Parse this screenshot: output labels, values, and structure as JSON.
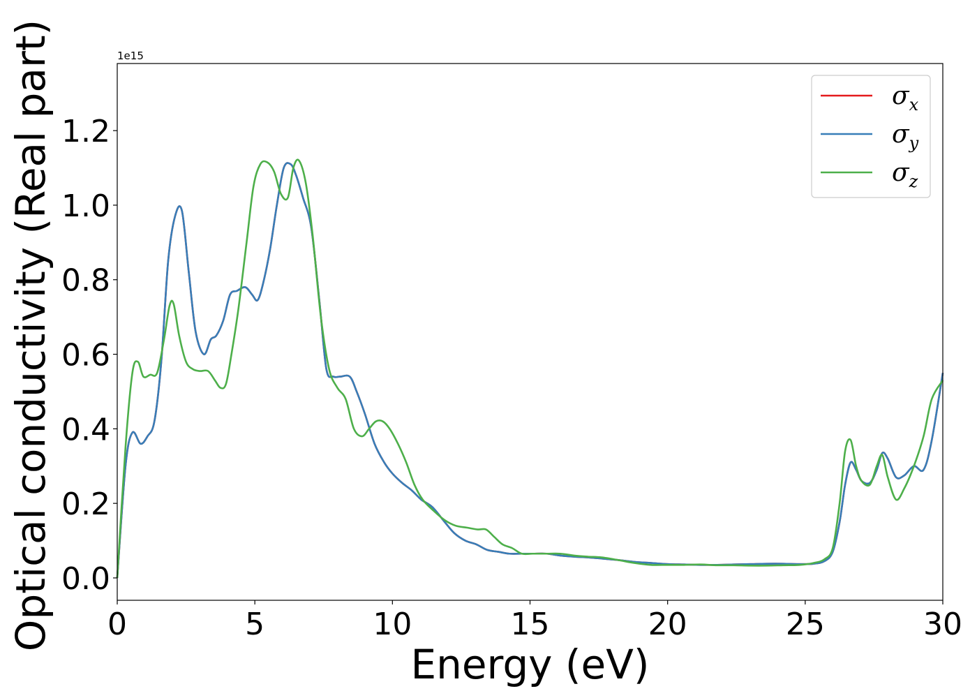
{
  "chart_data": {
    "type": "line",
    "title": "",
    "xlabel": "Energy (eV)",
    "ylabel": "Optical conductivity (Real part)",
    "y_offset_text": "1e15",
    "xlim": [
      0,
      30
    ],
    "ylim": [
      -0.06,
      1.38
    ],
    "xticks": [
      0,
      5,
      10,
      15,
      20,
      25,
      30
    ],
    "xtick_labels": [
      "0",
      "5",
      "10",
      "15",
      "20",
      "25",
      "30"
    ],
    "yticks": [
      0.0,
      0.2,
      0.4,
      0.6,
      0.8,
      1.0,
      1.2
    ],
    "ytick_labels": [
      "0.0",
      "0.2",
      "0.4",
      "0.6",
      "0.8",
      "1.0",
      "1.2"
    ],
    "grid": false,
    "legend_position": "top-right",
    "series": [
      {
        "name": "σx",
        "symbol": "σ",
        "subscript": "x",
        "color": "#e41a1c",
        "x": [
          0,
          0.3,
          0.55,
          0.85,
          1.1,
          1.35,
          1.6,
          1.85,
          2.1,
          2.35,
          2.6,
          2.85,
          3.15,
          3.4,
          3.6,
          3.85,
          4.1,
          4.35,
          4.65,
          4.9,
          5.1,
          5.3,
          5.55,
          5.8,
          6.05,
          6.3,
          6.5,
          6.75,
          7.05,
          7.35,
          7.6,
          7.85,
          8.1,
          8.45,
          8.7,
          9.0,
          9.35,
          9.7,
          10.0,
          10.35,
          10.7,
          11.05,
          11.45,
          11.9,
          12.25,
          12.65,
          13.05,
          13.45,
          13.85,
          14.25,
          14.7,
          15.1,
          15.6,
          16.1,
          16.6,
          17.1,
          17.6,
          18.2,
          18.8,
          19.4,
          20.0,
          20.6,
          21.2,
          21.8,
          22.4,
          23.0,
          23.6,
          24.2,
          24.8,
          25.3,
          25.7,
          26.0,
          26.25,
          26.45,
          26.65,
          26.85,
          27.05,
          27.35,
          27.6,
          27.8,
          28.0,
          28.3,
          28.6,
          28.95,
          29.3,
          29.6,
          30.0
        ],
        "y": [
          0,
          0.3,
          0.39,
          0.36,
          0.38,
          0.42,
          0.58,
          0.85,
          0.97,
          0.985,
          0.82,
          0.66,
          0.6,
          0.64,
          0.65,
          0.69,
          0.76,
          0.77,
          0.78,
          0.76,
          0.745,
          0.79,
          0.88,
          1.0,
          1.1,
          1.11,
          1.08,
          1.02,
          0.94,
          0.74,
          0.56,
          0.54,
          0.54,
          0.54,
          0.5,
          0.44,
          0.36,
          0.31,
          0.28,
          0.255,
          0.235,
          0.21,
          0.19,
          0.15,
          0.12,
          0.1,
          0.09,
          0.075,
          0.07,
          0.065,
          0.065,
          0.065,
          0.065,
          0.06,
          0.057,
          0.055,
          0.052,
          0.048,
          0.043,
          0.04,
          0.037,
          0.036,
          0.035,
          0.035,
          0.036,
          0.037,
          0.038,
          0.038,
          0.037,
          0.038,
          0.045,
          0.07,
          0.15,
          0.25,
          0.31,
          0.29,
          0.26,
          0.255,
          0.29,
          0.335,
          0.32,
          0.27,
          0.275,
          0.3,
          0.29,
          0.37,
          0.55
        ]
      },
      {
        "name": "σy",
        "symbol": "σ",
        "subscript": "y",
        "color": "#377eb8",
        "x": [
          0,
          0.3,
          0.55,
          0.85,
          1.1,
          1.35,
          1.6,
          1.85,
          2.1,
          2.35,
          2.6,
          2.85,
          3.15,
          3.4,
          3.6,
          3.85,
          4.1,
          4.35,
          4.65,
          4.9,
          5.1,
          5.3,
          5.55,
          5.8,
          6.05,
          6.3,
          6.5,
          6.75,
          7.05,
          7.35,
          7.6,
          7.85,
          8.1,
          8.45,
          8.7,
          9.0,
          9.35,
          9.7,
          10.0,
          10.35,
          10.7,
          11.05,
          11.45,
          11.9,
          12.25,
          12.65,
          13.05,
          13.45,
          13.85,
          14.25,
          14.7,
          15.1,
          15.6,
          16.1,
          16.6,
          17.1,
          17.6,
          18.2,
          18.8,
          19.4,
          20.0,
          20.6,
          21.2,
          21.8,
          22.4,
          23.0,
          23.6,
          24.2,
          24.8,
          25.3,
          25.7,
          26.0,
          26.25,
          26.45,
          26.65,
          26.85,
          27.05,
          27.35,
          27.6,
          27.8,
          28.0,
          28.3,
          28.6,
          28.95,
          29.3,
          29.6,
          30.0
        ],
        "y": [
          0,
          0.3,
          0.39,
          0.36,
          0.38,
          0.42,
          0.58,
          0.85,
          0.97,
          0.985,
          0.82,
          0.66,
          0.6,
          0.64,
          0.65,
          0.69,
          0.76,
          0.77,
          0.78,
          0.76,
          0.745,
          0.79,
          0.88,
          1.0,
          1.1,
          1.11,
          1.08,
          1.02,
          0.94,
          0.74,
          0.56,
          0.54,
          0.54,
          0.54,
          0.5,
          0.44,
          0.36,
          0.31,
          0.28,
          0.255,
          0.235,
          0.21,
          0.19,
          0.15,
          0.12,
          0.1,
          0.09,
          0.075,
          0.07,
          0.065,
          0.065,
          0.065,
          0.065,
          0.06,
          0.057,
          0.055,
          0.052,
          0.048,
          0.043,
          0.04,
          0.037,
          0.036,
          0.035,
          0.035,
          0.036,
          0.037,
          0.038,
          0.038,
          0.037,
          0.038,
          0.045,
          0.07,
          0.15,
          0.25,
          0.31,
          0.29,
          0.26,
          0.255,
          0.29,
          0.335,
          0.32,
          0.27,
          0.275,
          0.3,
          0.29,
          0.37,
          0.55
        ]
      },
      {
        "name": "σz",
        "symbol": "σ",
        "subscript": "z",
        "color": "#4daf4a",
        "x": [
          0,
          0.3,
          0.55,
          0.75,
          0.95,
          1.2,
          1.45,
          1.7,
          1.9,
          2.05,
          2.25,
          2.5,
          2.75,
          3.0,
          3.3,
          3.55,
          3.75,
          3.95,
          4.15,
          4.4,
          4.7,
          4.95,
          5.2,
          5.45,
          5.7,
          5.95,
          6.2,
          6.4,
          6.6,
          6.85,
          7.1,
          7.4,
          7.7,
          8.0,
          8.3,
          8.6,
          8.9,
          9.15,
          9.4,
          9.65,
          9.9,
          10.2,
          10.5,
          10.8,
          11.1,
          11.5,
          11.9,
          12.3,
          12.7,
          13.1,
          13.4,
          13.7,
          14.0,
          14.35,
          14.7,
          15.1,
          15.6,
          16.1,
          16.6,
          17.1,
          17.6,
          18.2,
          18.8,
          19.4,
          20.0,
          20.6,
          21.2,
          21.8,
          22.4,
          23.0,
          23.6,
          24.2,
          24.8,
          25.3,
          25.7,
          26.0,
          26.25,
          26.45,
          26.65,
          26.85,
          27.05,
          27.35,
          27.6,
          27.8,
          28.0,
          28.3,
          28.6,
          28.95,
          29.3,
          29.6,
          30.0
        ],
        "y": [
          0,
          0.35,
          0.55,
          0.58,
          0.54,
          0.545,
          0.55,
          0.64,
          0.73,
          0.735,
          0.65,
          0.58,
          0.56,
          0.555,
          0.555,
          0.53,
          0.51,
          0.52,
          0.6,
          0.72,
          0.9,
          1.05,
          1.11,
          1.115,
          1.09,
          1.03,
          1.02,
          1.1,
          1.12,
          1.06,
          0.92,
          0.7,
          0.56,
          0.51,
          0.48,
          0.4,
          0.38,
          0.4,
          0.42,
          0.42,
          0.4,
          0.36,
          0.31,
          0.25,
          0.21,
          0.18,
          0.155,
          0.14,
          0.135,
          0.13,
          0.13,
          0.11,
          0.09,
          0.08,
          0.065,
          0.065,
          0.065,
          0.065,
          0.06,
          0.057,
          0.055,
          0.048,
          0.04,
          0.035,
          0.035,
          0.035,
          0.036,
          0.034,
          0.034,
          0.033,
          0.033,
          0.034,
          0.035,
          0.04,
          0.05,
          0.08,
          0.2,
          0.34,
          0.37,
          0.3,
          0.26,
          0.25,
          0.3,
          0.33,
          0.27,
          0.21,
          0.24,
          0.3,
          0.38,
          0.48,
          0.53
        ]
      }
    ]
  }
}
